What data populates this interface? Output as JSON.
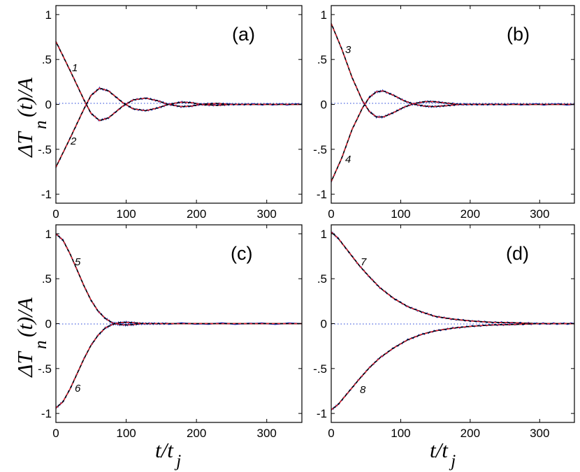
{
  "chart_data": [
    {
      "type": "line",
      "panel_label": "(a)",
      "xlim": [
        0,
        350
      ],
      "ylim": [
        -1.1,
        1.1
      ],
      "xticks": [
        "0",
        "100",
        "200",
        "300"
      ],
      "yticks": [
        "1",
        ".5",
        "0",
        "-.5",
        "-1"
      ],
      "zero_line": "dotted",
      "curve_labels": [
        "1",
        "2"
      ],
      "series": [
        {
          "name": "1",
          "x": [
            0,
            20,
            40,
            50,
            62,
            75,
            95,
            110,
            128,
            145,
            160,
            178,
            192,
            210,
            230,
            250,
            280,
            350
          ],
          "y": [
            0.7,
            0.38,
            0.05,
            -0.1,
            -0.18,
            -0.15,
            -0.02,
            0.05,
            0.07,
            0.04,
            0.0,
            -0.025,
            -0.02,
            0.005,
            0.01,
            0.0,
            0.0,
            0.0
          ]
        },
        {
          "name": "2",
          "x": [
            0,
            20,
            40,
            50,
            62,
            75,
            95,
            110,
            128,
            145,
            160,
            178,
            192,
            210,
            230,
            250,
            280,
            350
          ],
          "y": [
            -0.7,
            -0.38,
            -0.05,
            0.1,
            0.18,
            0.15,
            0.02,
            -0.05,
            -0.07,
            -0.04,
            0.0,
            0.025,
            0.02,
            -0.005,
            -0.01,
            0.0,
            0.0,
            0.0
          ]
        }
      ]
    },
    {
      "type": "line",
      "panel_label": "(b)",
      "xlim": [
        0,
        350
      ],
      "ylim": [
        -1.1,
        1.1
      ],
      "xticks": [
        "0",
        "100",
        "200",
        "300"
      ],
      "yticks": [
        "1",
        ".5",
        "0",
        "-.5",
        "-1"
      ],
      "zero_line": "dotted",
      "curve_labels": [
        "3",
        "4"
      ],
      "series": [
        {
          "name": "3",
          "x": [
            0,
            15,
            30,
            45,
            55,
            65,
            75,
            90,
            105,
            120,
            135,
            148,
            165,
            185,
            210,
            240,
            350
          ],
          "y": [
            0.9,
            0.62,
            0.3,
            0.04,
            -0.08,
            -0.14,
            -0.14,
            -0.09,
            -0.03,
            0.01,
            0.03,
            0.03,
            0.015,
            0.0,
            0.0,
            0.0,
            0.0
          ]
        },
        {
          "name": "4",
          "x": [
            0,
            15,
            30,
            45,
            55,
            65,
            75,
            90,
            105,
            120,
            135,
            148,
            165,
            185,
            210,
            240,
            350
          ],
          "y": [
            -0.86,
            -0.6,
            -0.28,
            -0.04,
            0.08,
            0.14,
            0.15,
            0.1,
            0.04,
            0.0,
            -0.02,
            -0.025,
            -0.015,
            0.0,
            0.0,
            0.0,
            0.0
          ]
        }
      ]
    },
    {
      "type": "line",
      "panel_label": "(c)",
      "xlim": [
        0,
        350
      ],
      "ylim": [
        -1.1,
        1.1
      ],
      "xticks": [
        "0",
        "100",
        "200",
        "300"
      ],
      "yticks": [
        "1",
        ".5",
        "0",
        "-.5",
        "-1"
      ],
      "zero_line": "dotted",
      "curve_labels": [
        "5",
        "6"
      ],
      "series": [
        {
          "name": "5",
          "x": [
            0,
            10,
            20,
            30,
            40,
            50,
            60,
            70,
            80,
            90,
            100,
            110,
            125,
            140,
            160,
            350
          ],
          "y": [
            1.0,
            0.93,
            0.78,
            0.6,
            0.42,
            0.26,
            0.14,
            0.06,
            0.01,
            -0.01,
            -0.015,
            -0.01,
            0.0,
            0.0,
            0.0,
            0.0
          ]
        },
        {
          "name": "6",
          "x": [
            0,
            10,
            20,
            30,
            40,
            50,
            60,
            70,
            80,
            90,
            100,
            110,
            125,
            140,
            160,
            350
          ],
          "y": [
            -0.94,
            -0.87,
            -0.73,
            -0.56,
            -0.39,
            -0.24,
            -0.13,
            -0.05,
            -0.01,
            0.01,
            0.015,
            0.01,
            0.0,
            0.0,
            0.0,
            0.0
          ]
        }
      ]
    },
    {
      "type": "line",
      "panel_label": "(d)",
      "xlim": [
        0,
        350
      ],
      "ylim": [
        -1.1,
        1.1
      ],
      "xticks": [
        "0",
        "100",
        "200",
        "300"
      ],
      "yticks": [
        "1",
        ".5",
        "0",
        "-.5",
        "-1"
      ],
      "zero_line": "dotted",
      "curve_labels": [
        "7",
        "8"
      ],
      "series": [
        {
          "name": "7",
          "x": [
            0,
            10,
            25,
            40,
            55,
            70,
            90,
            110,
            130,
            150,
            175,
            200,
            230,
            260,
            300,
            350
          ],
          "y": [
            1.02,
            0.95,
            0.8,
            0.65,
            0.52,
            0.4,
            0.28,
            0.19,
            0.13,
            0.08,
            0.05,
            0.03,
            0.015,
            0.01,
            0.0,
            0.0
          ]
        },
        {
          "name": "8",
          "x": [
            0,
            10,
            25,
            40,
            55,
            70,
            90,
            110,
            130,
            150,
            175,
            200,
            230,
            260,
            300,
            350
          ],
          "y": [
            -0.96,
            -0.9,
            -0.76,
            -0.62,
            -0.49,
            -0.38,
            -0.27,
            -0.18,
            -0.12,
            -0.08,
            -0.05,
            -0.03,
            -0.015,
            -0.01,
            0.0,
            0.0
          ]
        }
      ]
    }
  ],
  "labels": {
    "ylabel_main": "ΔT",
    "ylabel_rest": "(t)/A",
    "ylabel_sub": "n",
    "xlabel_main": "t/t",
    "xlabel_sub": "j"
  },
  "colors": {
    "black": "#000000",
    "red": "#e8202a",
    "blue": "#1f3fd8",
    "zero": "#1f3fd8"
  }
}
